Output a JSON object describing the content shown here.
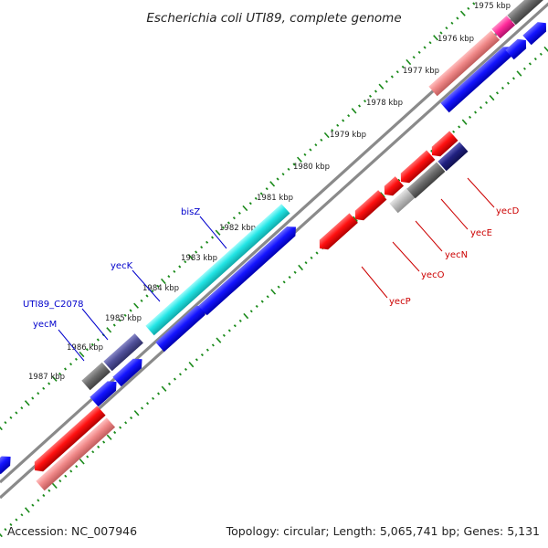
{
  "title": "Escherichia coli UTI89, complete genome",
  "footer": {
    "accession": "Accession: NC_007946",
    "summary": "Topology: circular; Length: 5,065,741 bp; Genes: 5,131"
  },
  "colors": {
    "backbone": "#8c8c8c",
    "tick": "#1a8a1a",
    "blue_gene": "#1a1aff",
    "red_gene": "#ff1a1a",
    "pink_gene": "#f08a8a",
    "gray_gene": "#6e6e6e",
    "cyan_gene": "#22e5e5",
    "navy_gene": "#202080",
    "magenta_gene": "#ff2a9a"
  },
  "kbp_labels": [
    "1975 kbp",
    "1976 kbp",
    "1977 kbp",
    "1978 kbp",
    "1979 kbp",
    "1980 kbp",
    "1981 kbp",
    "1982 kbp",
    "1983 kbp",
    "1984 kbp",
    "1985 kbp",
    "1986 kbp",
    "1987 kbp"
  ],
  "genes_forward": [
    {
      "name": "bisZ"
    },
    {
      "name": "yecK"
    },
    {
      "name": "UTI89_C2078"
    },
    {
      "name": "yecM"
    }
  ],
  "genes_reverse": [
    {
      "name": "yecD"
    },
    {
      "name": "yecE"
    },
    {
      "name": "yecN"
    },
    {
      "name": "yecO"
    },
    {
      "name": "yecP"
    }
  ]
}
